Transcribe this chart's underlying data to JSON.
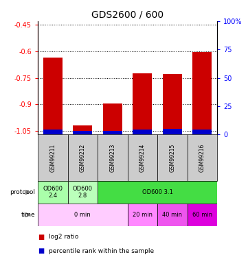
{
  "title": "GDS2600 / 600",
  "samples": [
    "GSM99211",
    "GSM99212",
    "GSM99213",
    "GSM99214",
    "GSM99215",
    "GSM99216"
  ],
  "log2_ratio_values": [
    -0.635,
    -1.02,
    -0.895,
    -0.725,
    -0.73,
    -0.605
  ],
  "percentile_pct": [
    4,
    3,
    3,
    4,
    5,
    4
  ],
  "ylim_left": [
    -1.07,
    -0.43
  ],
  "ylim_right": [
    0,
    100
  ],
  "yticks_left": [
    -1.05,
    -0.9,
    -0.75,
    -0.6,
    -0.45
  ],
  "yticks_right": [
    0,
    25,
    50,
    75,
    100
  ],
  "ytick_labels_left": [
    "-1.05",
    "-0.9",
    "-0.75",
    "-0.6",
    "-0.45"
  ],
  "ytick_labels_right": [
    "0",
    "25",
    "50",
    "75",
    "100%"
  ],
  "bar_color_red": "#cc0000",
  "bar_color_blue": "#0000cc",
  "bar_width": 0.65,
  "prot_data": [
    [
      0,
      1,
      "#aaffaa",
      "OD600\n2.4"
    ],
    [
      1,
      2,
      "#bbffbb",
      "OD600\n2.8"
    ],
    [
      2,
      6,
      "#44dd44",
      "OD600 3.1"
    ]
  ],
  "time_data": [
    [
      0,
      3,
      "#ffccff",
      "0 min"
    ],
    [
      3,
      4,
      "#ff88ff",
      "20 min"
    ],
    [
      4,
      5,
      "#ee55ee",
      "40 min"
    ],
    [
      5,
      6,
      "#dd00dd",
      "60 min"
    ]
  ],
  "legend_red": "log2 ratio",
  "legend_blue": "percentile rank within the sample",
  "background_color": "#ffffff",
  "sample_bg_color": "#cccccc"
}
